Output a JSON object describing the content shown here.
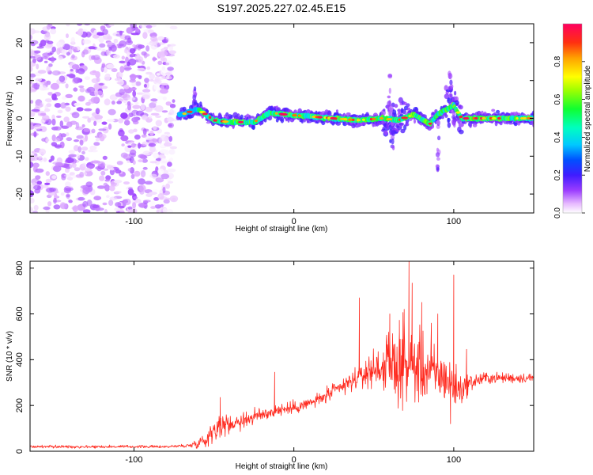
{
  "title": "S197.2025.227.02.45.E15",
  "chart_data": [
    {
      "type": "heatmap",
      "title": "S197.2025.227.02.45.E15",
      "xlabel": "Height of straight line (km)",
      "ylabel": "Frequency (Hz)",
      "xlim": [
        -165,
        150
      ],
      "ylim": [
        -25,
        25
      ],
      "xticks": [
        -100,
        0,
        100
      ],
      "xtick_labels": [
        "-100",
        "0",
        "100"
      ],
      "yticks": [
        -20,
        -10,
        0,
        10,
        20
      ],
      "ytick_labels": [
        "-20",
        "-10",
        "0",
        "10",
        "20"
      ],
      "colorbar": {
        "label": "Normalized spectral amplitude",
        "range": [
          0,
          1
        ],
        "ticks": [
          0.0,
          0.2,
          0.4,
          0.6,
          0.8
        ],
        "tick_labels": [
          "0.0",
          "0.2",
          "0.4",
          "0.6",
          "0.8"
        ],
        "colormap": "gist_rainbow"
      },
      "regions": [
        {
          "name": "scattered noise",
          "x_range": [
            -165,
            -75
          ],
          "y_range": [
            -25,
            25
          ],
          "amplitude_range": [
            0.0,
            0.1
          ]
        },
        {
          "name": "signal trace",
          "x_range": [
            -72,
            150
          ],
          "amplitude_range": [
            0.1,
            1.0
          ]
        }
      ],
      "signal_track": [
        {
          "x": -70,
          "f": 1.0
        },
        {
          "x": -60,
          "f": 2.5
        },
        {
          "x": -50,
          "f": -0.5
        },
        {
          "x": -40,
          "f": -1.0
        },
        {
          "x": -25,
          "f": -1.0
        },
        {
          "x": -15,
          "f": 1.5
        },
        {
          "x": -5,
          "f": 1.0
        },
        {
          "x": 10,
          "f": 0.5
        },
        {
          "x": 25,
          "f": 0.0
        },
        {
          "x": 40,
          "f": -0.5
        },
        {
          "x": 55,
          "f": 0.0
        },
        {
          "x": 65,
          "f": -0.5
        },
        {
          "x": 75,
          "f": 1.0
        },
        {
          "x": 85,
          "f": -1.5
        },
        {
          "x": 90,
          "f": 1.0
        },
        {
          "x": 100,
          "f": 3.5
        },
        {
          "x": 105,
          "f": 0.0
        },
        {
          "x": 120,
          "f": 0.0
        },
        {
          "x": 135,
          "f": 0.0
        },
        {
          "x": 150,
          "f": 0.0
        }
      ]
    },
    {
      "type": "line",
      "xlabel": "Height of straight line (km)",
      "ylabel": "SNR (10 * v/v)",
      "xlim": [
        -165,
        150
      ],
      "ylim": [
        0,
        830
      ],
      "xticks": [
        -100,
        0,
        100
      ],
      "xtick_labels": [
        "-100",
        "0",
        "100"
      ],
      "yticks": [
        0,
        200,
        400,
        600,
        800
      ],
      "ytick_labels": [
        "0",
        "200",
        "400",
        "600",
        "800"
      ],
      "line_color": "#ff2a1f",
      "envelope": {
        "x": [
          -165,
          -120,
          -80,
          -65,
          -55,
          -50,
          -40,
          -30,
          -20,
          -10,
          0,
          10,
          20,
          30,
          40,
          50,
          60,
          70,
          80,
          90,
          95,
          100,
          105,
          110,
          120,
          130,
          140,
          150
        ],
        "y": [
          20,
          20,
          20,
          25,
          50,
          100,
          120,
          140,
          160,
          180,
          190,
          210,
          240,
          280,
          320,
          360,
          380,
          380,
          360,
          330,
          320,
          280,
          270,
          300,
          320,
          320,
          320,
          320
        ],
        "noise": [
          6,
          6,
          5,
          8,
          35,
          45,
          40,
          35,
          30,
          25,
          25,
          25,
          30,
          40,
          40,
          70,
          130,
          160,
          140,
          110,
          90,
          100,
          60,
          35,
          25,
          20,
          20,
          20
        ]
      },
      "spikes": [
        {
          "x": -46,
          "y": 235
        },
        {
          "x": -12,
          "y": 345
        },
        {
          "x": 41,
          "y": 670
        },
        {
          "x": 60,
          "y": 600
        },
        {
          "x": 66,
          "y": 520
        },
        {
          "x": 69,
          "y": 620
        },
        {
          "x": 72,
          "y": 830
        },
        {
          "x": 74,
          "y": 735
        },
        {
          "x": 80,
          "y": 650
        },
        {
          "x": 86,
          "y": 560
        },
        {
          "x": 90,
          "y": 600
        },
        {
          "x": 98,
          "y": 120
        },
        {
          "x": 100,
          "y": 770
        },
        {
          "x": 108,
          "y": 445
        }
      ]
    }
  ]
}
